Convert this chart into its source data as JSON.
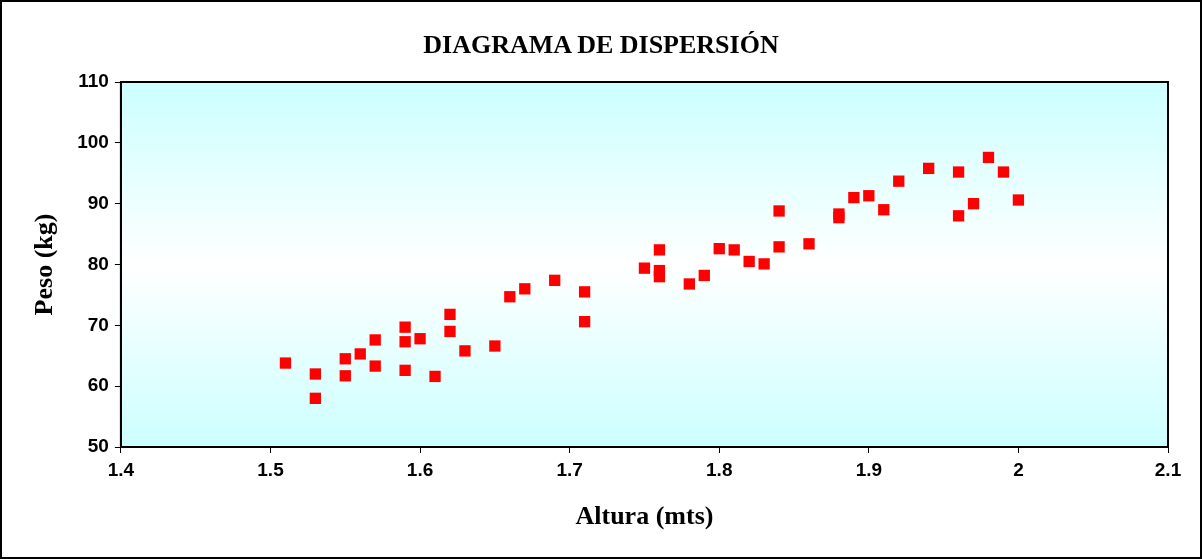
{
  "chart_data": {
    "type": "scatter",
    "title": "DIAGRAMA DE DISPERSIÓN",
    "xlabel": "Altura (mts)",
    "ylabel": "Peso (kg)",
    "x": [
      1.51,
      1.53,
      1.53,
      1.55,
      1.55,
      1.56,
      1.57,
      1.57,
      1.59,
      1.59,
      1.59,
      1.6,
      1.61,
      1.62,
      1.62,
      1.63,
      1.65,
      1.66,
      1.67,
      1.69,
      1.71,
      1.71,
      1.75,
      1.76,
      1.76,
      1.76,
      1.78,
      1.79,
      1.8,
      1.81,
      1.82,
      1.83,
      1.84,
      1.84,
      1.86,
      1.88,
      1.88,
      1.89,
      1.9,
      1.91,
      1.92,
      1.94,
      1.96,
      1.96,
      1.97,
      1.98,
      1.99,
      2.0
    ],
    "series": [
      {
        "color": "#ff0000",
        "values": [
          63.8,
          62.0,
          58.0,
          64.5,
          61.7,
          65.3,
          67.6,
          63.3,
          69.7,
          67.3,
          62.6,
          67.8,
          61.6,
          71.8,
          69.0,
          65.8,
          66.6,
          74.7,
          76.0,
          77.4,
          75.5,
          70.6,
          79.4,
          82.4,
          79.0,
          78.0,
          76.8,
          78.2,
          82.6,
          82.4,
          80.5,
          80.1,
          88.8,
          82.9,
          83.4,
          88.3,
          87.7,
          91.0,
          91.3,
          89.0,
          93.7,
          95.8,
          95.2,
          88.0,
          90.0,
          97.6,
          95.2,
          90.6
        ]
      }
    ],
    "xlim": [
      1.4,
      2.1
    ],
    "xticks": [
      1.4,
      1.5,
      1.6,
      1.7,
      1.8,
      1.9,
      2,
      2.1
    ],
    "ylim": [
      50,
      110
    ],
    "yticks": [
      50,
      60,
      70,
      80,
      90,
      100,
      110
    ],
    "marker": "square",
    "grid": false,
    "legend": false
  }
}
